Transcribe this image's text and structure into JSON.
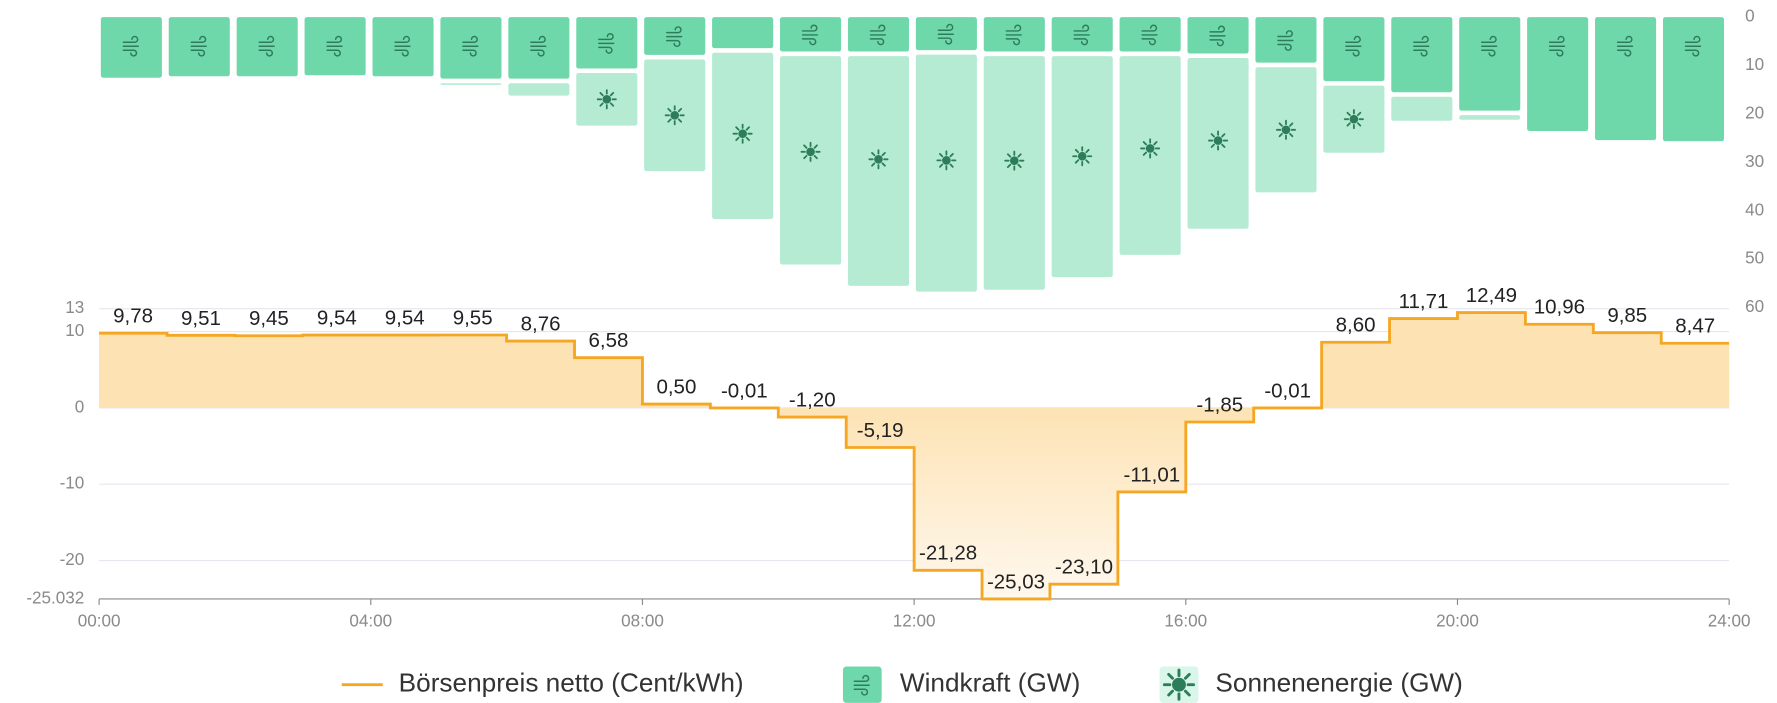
{
  "chart_data": [
    {
      "type": "step",
      "xlim": [
        0,
        24
      ],
      "xticks": [
        {
          "value": 0,
          "label": "00:00"
        },
        {
          "value": 4,
          "label": "04:00"
        },
        {
          "value": 8,
          "label": "08:00"
        },
        {
          "value": 12,
          "label": "12:00"
        },
        {
          "value": 16,
          "label": "16:00"
        },
        {
          "value": 20,
          "label": "20:00"
        },
        {
          "value": 24,
          "label": "24:00"
        }
      ],
      "ylim": [
        -25.032,
        13
      ],
      "yticks": [
        13,
        10,
        0,
        -10,
        -20,
        -25.032
      ],
      "grid": true,
      "x": [
        0,
        1,
        2,
        3,
        4,
        5,
        6,
        7,
        8,
        9,
        10,
        11,
        12,
        13,
        14,
        15,
        16,
        17,
        18,
        19,
        20,
        21,
        22,
        23
      ],
      "series": [
        {
          "name": "Börsenpreis netto (Cent/kWh)",
          "color": "#f5a623",
          "values": [
            9.78,
            9.51,
            9.45,
            9.54,
            9.54,
            9.55,
            8.76,
            6.58,
            0.5,
            -0.01,
            -1.2,
            -5.19,
            -21.28,
            -25.03,
            -23.1,
            -11.01,
            -1.85,
            -0.01,
            8.6,
            11.71,
            12.49,
            10.96,
            9.85,
            8.47
          ],
          "value_labels": [
            "9,78",
            "9,51",
            "9,45",
            "9,54",
            "9,54",
            "9,55",
            "8,76",
            "6,58",
            "0,50",
            "-0,01",
            "-1,20",
            "-5,19",
            "-21,28",
            "-25,03",
            "-23,10",
            "-11,01",
            "-1,85",
            "-0,01",
            "8,60",
            "11,71",
            "12,49",
            "10,96",
            "9,85",
            "8,47"
          ]
        }
      ]
    },
    {
      "type": "bar",
      "stacked": true,
      "inverted": true,
      "xlim": [
        0,
        24
      ],
      "ylim": [
        0,
        60
      ],
      "yticks": [
        0,
        10,
        20,
        30,
        40,
        50,
        60
      ],
      "x": [
        0,
        1,
        2,
        3,
        4,
        5,
        6,
        7,
        8,
        9,
        10,
        11,
        12,
        13,
        14,
        15,
        16,
        17,
        18,
        19,
        20,
        21,
        22,
        23
      ],
      "series": [
        {
          "name": "Windkraft (GW)",
          "color": "#6fd8ab",
          "values": [
            12.5,
            12.2,
            12.2,
            12.0,
            12.2,
            12.7,
            12.7,
            10.6,
            7.8,
            6.4,
            7.1,
            7.1,
            6.8,
            7.1,
            7.1,
            7.1,
            7.5,
            9.4,
            13.2,
            15.5,
            19.3,
            23.5,
            25.4,
            25.6
          ]
        },
        {
          "name": "Sonnenenergie (GW)",
          "color": "#b5ebd3",
          "values": [
            0,
            0,
            0,
            0,
            0,
            0.8,
            3.5,
            11.8,
            24.0,
            35.3,
            44.0,
            48.4,
            49.9,
            49.2,
            46.6,
            42.0,
            36.2,
            26.8,
            14.8,
            5.9,
            1.9,
            0,
            0,
            0
          ]
        }
      ]
    }
  ]
}
